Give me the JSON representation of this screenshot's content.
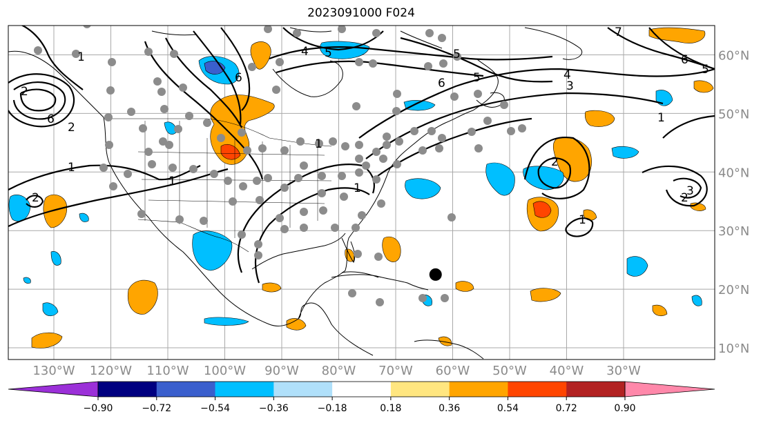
{
  "title": "2023091000 F024",
  "map": {
    "lon_range": [
      -138,
      -14
    ],
    "lat_range": [
      8,
      65
    ],
    "longitude_labels": [
      "130°W",
      "120°W",
      "110°W",
      "100°W",
      "90°W",
      "80°W",
      "70°W",
      "60°W",
      "50°W",
      "40°W",
      "30°W"
    ],
    "longitude_values": [
      -130,
      -120,
      -110,
      -100,
      -90,
      -80,
      -70,
      -60,
      -50,
      -40,
      -30
    ],
    "latitude_labels": [
      "60°N",
      "50°N",
      "40°N",
      "30°N",
      "20°N",
      "10°N"
    ],
    "latitude_values": [
      60,
      50,
      40,
      30,
      20,
      10
    ],
    "grid": true,
    "contour_labels": [
      "1",
      "1",
      "1",
      "2",
      "2",
      "4",
      "5",
      "6",
      "6",
      "5",
      "4",
      "3",
      "6",
      "5",
      "2",
      "1",
      "1",
      "2",
      "3",
      "1",
      "2",
      "1",
      "6",
      "5",
      "7"
    ],
    "storm_marker": {
      "lon": -63,
      "lat": 22.5,
      "color": "#000000"
    },
    "station_dot_color": "#8c8c8c"
  },
  "colorbar": {
    "ticks": [
      "−0.90",
      "−0.72",
      "−0.54",
      "−0.36",
      "−0.18",
      "0.18",
      "0.36",
      "0.54",
      "0.72",
      "0.90"
    ],
    "colors": [
      "#9b30d8",
      "#000080",
      "#3a5fcd",
      "#00bfff",
      "#b0e0fa",
      "#ffffff",
      "#ffe680",
      "#ffa500",
      "#ff4500",
      "#b22222",
      "#ff88aa"
    ]
  }
}
